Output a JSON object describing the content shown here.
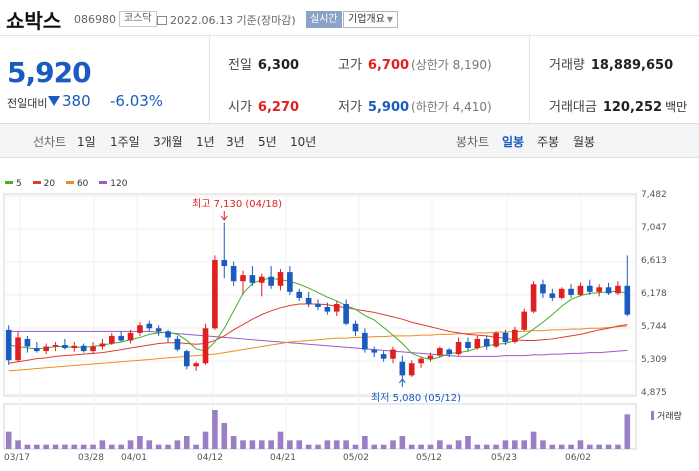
{
  "header": {
    "title": "쇼박스",
    "code": "086980",
    "market": "코스닥",
    "date": "2022.06.13 기준(장마감)",
    "realtime": "실시간",
    "company_info": "기업개요"
  },
  "quote": {
    "price": "5,920",
    "change_label": "전일대비",
    "change": "380",
    "change_pct": "-6.03%",
    "prev_close": {
      "label": "전일",
      "value": "6,300"
    },
    "open": {
      "label": "시가",
      "value": "6,270"
    },
    "high": {
      "label": "고가",
      "value": "6,700",
      "sub": "(상한가 8,190)"
    },
    "low": {
      "label": "저가",
      "value": "5,900",
      "sub": "(하한가 4,410)"
    },
    "volume": {
      "label": "거래량",
      "value": "18,889,650"
    },
    "amount": {
      "label": "거래대금",
      "value": "120,252",
      "unit": "백만"
    }
  },
  "tabs": {
    "line_label": "선차트",
    "periods": [
      "1일",
      "1주일",
      "3개월",
      "1년",
      "3년",
      "5년",
      "10년"
    ],
    "candle_label": "봉차트",
    "candle": [
      "일봉",
      "주봉",
      "월봉"
    ]
  },
  "legend": [
    {
      "name": "5",
      "color": "#43b02a"
    },
    {
      "name": "20",
      "color": "#e03c31"
    },
    {
      "name": "60",
      "color": "#f08c1e"
    },
    {
      "name": "120",
      "color": "#9b59c9"
    }
  ],
  "annotations": {
    "high": "최고 7,130 (04/18)",
    "low": "최저 5,080 (05/12)"
  },
  "volume_label": "거래량",
  "chart_data": {
    "type": "candlestick",
    "y_ticks": [
      "7,482",
      "7,047",
      "6,613",
      "6,178",
      "5,744",
      "5,309",
      "4,875"
    ],
    "x_ticks": [
      "03/17",
      "03/28",
      "04/01",
      "04/12",
      "04/21",
      "05/02",
      "05/12",
      "05/23",
      "06/02"
    ],
    "ylim": [
      4875,
      7482
    ],
    "up_color": "#e02020",
    "down_color": "#1a5bbf",
    "candles": [
      {
        "o": 5720,
        "h": 5780,
        "l": 5260,
        "c": 5320,
        "v": 4
      },
      {
        "o": 5320,
        "h": 5700,
        "l": 5300,
        "c": 5620,
        "v": 2
      },
      {
        "o": 5600,
        "h": 5640,
        "l": 5420,
        "c": 5500,
        "v": 1
      },
      {
        "o": 5480,
        "h": 5560,
        "l": 5420,
        "c": 5440,
        "v": 1
      },
      {
        "o": 5440,
        "h": 5540,
        "l": 5400,
        "c": 5500,
        "v": 1
      },
      {
        "o": 5500,
        "h": 5560,
        "l": 5440,
        "c": 5520,
        "v": 1
      },
      {
        "o": 5520,
        "h": 5600,
        "l": 5460,
        "c": 5480,
        "v": 1
      },
      {
        "o": 5480,
        "h": 5560,
        "l": 5430,
        "c": 5510,
        "v": 1
      },
      {
        "o": 5510,
        "h": 5540,
        "l": 5420,
        "c": 5440,
        "v": 1
      },
      {
        "o": 5440,
        "h": 5560,
        "l": 5400,
        "c": 5500,
        "v": 1
      },
      {
        "o": 5500,
        "h": 5600,
        "l": 5460,
        "c": 5540,
        "v": 2
      },
      {
        "o": 5540,
        "h": 5680,
        "l": 5520,
        "c": 5640,
        "v": 1
      },
      {
        "o": 5640,
        "h": 5700,
        "l": 5560,
        "c": 5580,
        "v": 1
      },
      {
        "o": 5580,
        "h": 5720,
        "l": 5540,
        "c": 5680,
        "v": 2
      },
      {
        "o": 5680,
        "h": 5820,
        "l": 5640,
        "c": 5780,
        "v": 3
      },
      {
        "o": 5800,
        "h": 5840,
        "l": 5700,
        "c": 5740,
        "v": 2
      },
      {
        "o": 5740,
        "h": 5780,
        "l": 5640,
        "c": 5700,
        "v": 1
      },
      {
        "o": 5700,
        "h": 5720,
        "l": 5560,
        "c": 5620,
        "v": 1
      },
      {
        "o": 5600,
        "h": 5640,
        "l": 5440,
        "c": 5460,
        "v": 2
      },
      {
        "o": 5440,
        "h": 5460,
        "l": 5200,
        "c": 5240,
        "v": 3
      },
      {
        "o": 5240,
        "h": 5300,
        "l": 5180,
        "c": 5280,
        "v": 1
      },
      {
        "o": 5280,
        "h": 5800,
        "l": 5260,
        "c": 5740,
        "v": 4
      },
      {
        "o": 5740,
        "h": 6700,
        "l": 5720,
        "c": 6640,
        "v": 9
      },
      {
        "o": 6640,
        "h": 7130,
        "l": 6400,
        "c": 6560,
        "v": 6
      },
      {
        "o": 6560,
        "h": 6620,
        "l": 6300,
        "c": 6360,
        "v": 3
      },
      {
        "o": 6360,
        "h": 6500,
        "l": 6180,
        "c": 6440,
        "v": 2
      },
      {
        "o": 6440,
        "h": 6560,
        "l": 6300,
        "c": 6340,
        "v": 2
      },
      {
        "o": 6340,
        "h": 6460,
        "l": 6160,
        "c": 6420,
        "v": 2
      },
      {
        "o": 6420,
        "h": 6560,
        "l": 6260,
        "c": 6300,
        "v": 2
      },
      {
        "o": 6300,
        "h": 6520,
        "l": 6240,
        "c": 6480,
        "v": 4
      },
      {
        "o": 6480,
        "h": 6560,
        "l": 6180,
        "c": 6220,
        "v": 2
      },
      {
        "o": 6220,
        "h": 6260,
        "l": 6100,
        "c": 6140,
        "v": 2
      },
      {
        "o": 6140,
        "h": 6220,
        "l": 6020,
        "c": 6060,
        "v": 1
      },
      {
        "o": 6060,
        "h": 6120,
        "l": 5980,
        "c": 6020,
        "v": 1
      },
      {
        "o": 6020,
        "h": 6080,
        "l": 5920,
        "c": 5960,
        "v": 2
      },
      {
        "o": 5960,
        "h": 6100,
        "l": 5900,
        "c": 6060,
        "v": 2
      },
      {
        "o": 6060,
        "h": 6120,
        "l": 5780,
        "c": 5800,
        "v": 2
      },
      {
        "o": 5800,
        "h": 5840,
        "l": 5640,
        "c": 5700,
        "v": 1
      },
      {
        "o": 5680,
        "h": 5740,
        "l": 5420,
        "c": 5460,
        "v": 3
      },
      {
        "o": 5460,
        "h": 5500,
        "l": 5360,
        "c": 5420,
        "v": 1
      },
      {
        "o": 5400,
        "h": 5440,
        "l": 5300,
        "c": 5340,
        "v": 1
      },
      {
        "o": 5340,
        "h": 5500,
        "l": 5280,
        "c": 5460,
        "v": 2
      },
      {
        "o": 5300,
        "h": 5380,
        "l": 5080,
        "c": 5120,
        "v": 3
      },
      {
        "o": 5120,
        "h": 5320,
        "l": 5100,
        "c": 5280,
        "v": 1
      },
      {
        "o": 5280,
        "h": 5360,
        "l": 5220,
        "c": 5340,
        "v": 1
      },
      {
        "o": 5340,
        "h": 5420,
        "l": 5300,
        "c": 5380,
        "v": 1
      },
      {
        "o": 5380,
        "h": 5500,
        "l": 5360,
        "c": 5480,
        "v": 2
      },
      {
        "o": 5460,
        "h": 5480,
        "l": 5360,
        "c": 5400,
        "v": 1
      },
      {
        "o": 5400,
        "h": 5620,
        "l": 5380,
        "c": 5560,
        "v": 2
      },
      {
        "o": 5560,
        "h": 5620,
        "l": 5440,
        "c": 5480,
        "v": 3
      },
      {
        "o": 5480,
        "h": 5640,
        "l": 5460,
        "c": 5600,
        "v": 1
      },
      {
        "o": 5600,
        "h": 5640,
        "l": 5460,
        "c": 5500,
        "v": 1
      },
      {
        "o": 5500,
        "h": 5700,
        "l": 5480,
        "c": 5680,
        "v": 1
      },
      {
        "o": 5680,
        "h": 5720,
        "l": 5520,
        "c": 5560,
        "v": 2
      },
      {
        "o": 5560,
        "h": 5760,
        "l": 5540,
        "c": 5720,
        "v": 2
      },
      {
        "o": 5720,
        "h": 6000,
        "l": 5700,
        "c": 5960,
        "v": 2
      },
      {
        "o": 5960,
        "h": 6360,
        "l": 5940,
        "c": 6320,
        "v": 4
      },
      {
        "o": 6320,
        "h": 6380,
        "l": 6140,
        "c": 6200,
        "v": 2
      },
      {
        "o": 6200,
        "h": 6260,
        "l": 6100,
        "c": 6140,
        "v": 1
      },
      {
        "o": 6140,
        "h": 6280,
        "l": 6120,
        "c": 6260,
        "v": 1
      },
      {
        "o": 6260,
        "h": 6320,
        "l": 6140,
        "c": 6180,
        "v": 1
      },
      {
        "o": 6180,
        "h": 6340,
        "l": 6160,
        "c": 6300,
        "v": 2
      },
      {
        "o": 6300,
        "h": 6380,
        "l": 6180,
        "c": 6220,
        "v": 1
      },
      {
        "o": 6220,
        "h": 6320,
        "l": 6160,
        "c": 6280,
        "v": 1
      },
      {
        "o": 6280,
        "h": 6340,
        "l": 6180,
        "c": 6200,
        "v": 1
      },
      {
        "o": 6200,
        "h": 6360,
        "l": 6180,
        "c": 6300,
        "v": 1
      },
      {
        "o": 6300,
        "h": 6700,
        "l": 5900,
        "c": 5920,
        "v": 8
      }
    ],
    "ma5": [
      5520,
      5500,
      5480,
      5470,
      5480,
      5500,
      5500,
      5490,
      5490,
      5500,
      5520,
      5540,
      5560,
      5590,
      5620,
      5660,
      5680,
      5690,
      5660,
      5580,
      5470,
      5440,
      5560,
      5740,
      5970,
      6200,
      6330,
      6380,
      6400,
      6380,
      6360,
      6320,
      6270,
      6210,
      6150,
      6100,
      6040,
      5990,
      5910,
      5850,
      5750,
      5650,
      5540,
      5410,
      5360,
      5330,
      5360,
      5410,
      5420,
      5440,
      5480,
      5510,
      5530,
      5540,
      5580,
      5640,
      5730,
      5820,
      5920,
      6030,
      6120,
      6170,
      6200,
      6210,
      6220,
      6230,
      6200
    ],
    "ma20": [
      5280,
      5300,
      5320,
      5340,
      5350,
      5370,
      5380,
      5390,
      5400,
      5410,
      5420,
      5440,
      5460,
      5480,
      5500,
      5520,
      5540,
      5550,
      5550,
      5540,
      5530,
      5540,
      5580,
      5640,
      5720,
      5790,
      5860,
      5920,
      5970,
      6010,
      6040,
      6060,
      6060,
      6060,
      6050,
      6030,
      6010,
      5990,
      5970,
      5950,
      5920,
      5890,
      5860,
      5820,
      5790,
      5760,
      5730,
      5700,
      5680,
      5660,
      5650,
      5640,
      5620,
      5610,
      5590,
      5580,
      5580,
      5590,
      5600,
      5620,
      5640,
      5660,
      5690,
      5720,
      5740,
      5770,
      5790
    ],
    "ma60": [
      5180,
      5190,
      5200,
      5210,
      5220,
      5230,
      5240,
      5250,
      5260,
      5270,
      5280,
      5290,
      5300,
      5310,
      5320,
      5330,
      5340,
      5350,
      5360,
      5370,
      5380,
      5390,
      5400,
      5420,
      5440,
      5460,
      5480,
      5500,
      5520,
      5540,
      5560,
      5570,
      5580,
      5590,
      5600,
      5610,
      5610,
      5620,
      5620,
      5630,
      5630,
      5640,
      5640,
      5640,
      5650,
      5650,
      5660,
      5660,
      5670,
      5670,
      5680,
      5680,
      5690,
      5690,
      5700,
      5700,
      5710,
      5710,
      5720,
      5720,
      5730,
      5730,
      5740,
      5740,
      5750,
      5760,
      5770
    ],
    "ma120": [
      5700,
      5700,
      5700,
      5700,
      5700,
      5700,
      5700,
      5700,
      5700,
      5700,
      5700,
      5700,
      5700,
      5700,
      5700,
      5700,
      5690,
      5680,
      5670,
      5660,
      5650,
      5640,
      5630,
      5620,
      5610,
      5600,
      5590,
      5580,
      5570,
      5560,
      5550,
      5540,
      5530,
      5520,
      5510,
      5500,
      5490,
      5480,
      5470,
      5460,
      5450,
      5440,
      5430,
      5420,
      5410,
      5400,
      5390,
      5380,
      5370,
      5370,
      5370,
      5370,
      5370,
      5380,
      5380,
      5380,
      5390,
      5390,
      5400,
      5400,
      5410,
      5410,
      5420,
      5420,
      5430,
      5440,
      5450
    ]
  }
}
